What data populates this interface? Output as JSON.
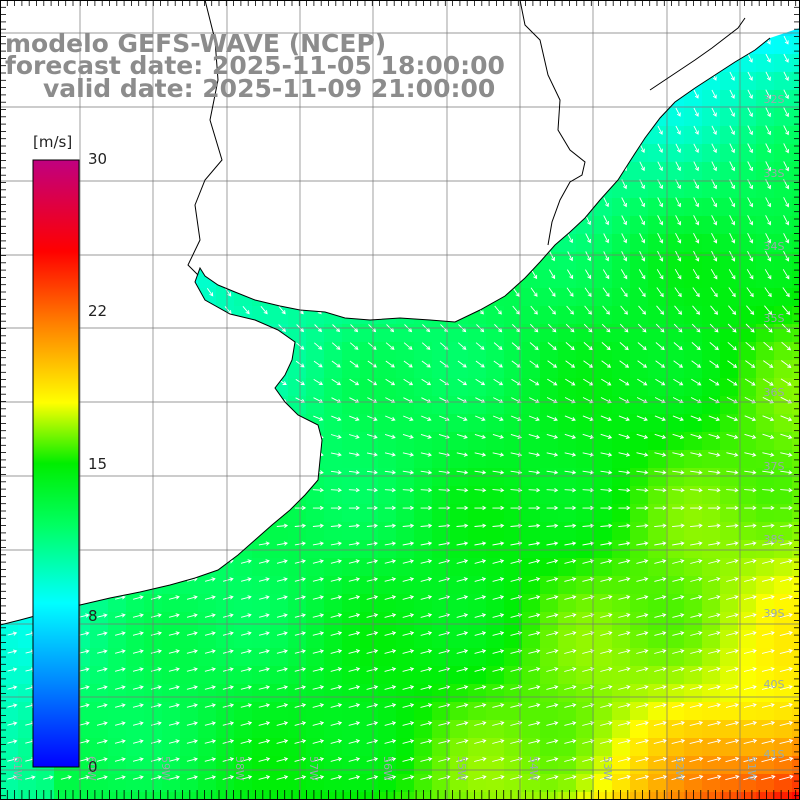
{
  "title": {
    "line1": "modelo GEFS-WAVE (NCEP)",
    "line2": "forecast date: 2025-11-05 18:00:00",
    "line3": "valid date: 2025-11-09 21:00:00"
  },
  "colorbar": {
    "unit": "[m/s]",
    "ticks": [
      "30",
      "22",
      "15",
      "8",
      "0"
    ],
    "range": [
      0,
      30
    ],
    "colors": [
      "#0000ff",
      "#00aaff",
      "#00ffff",
      "#00ff00",
      "#ffff00",
      "#ff8000",
      "#ff0000",
      "#c00080"
    ]
  },
  "map": {
    "variable": "wind speed and direction",
    "lat_labels": [
      "32S",
      "33S",
      "34S",
      "35S",
      "36S",
      "37S",
      "38S",
      "39S",
      "40S",
      "41S"
    ],
    "lon_labels": [
      "61W",
      "60W",
      "59W",
      "58W",
      "57W",
      "56W",
      "55W",
      "54W",
      "53W",
      "52W",
      "51W"
    ],
    "colors": {
      "land": "#ffffff",
      "coast": "#000000",
      "grid": "#777777",
      "arrow": "#ffffff"
    }
  }
}
